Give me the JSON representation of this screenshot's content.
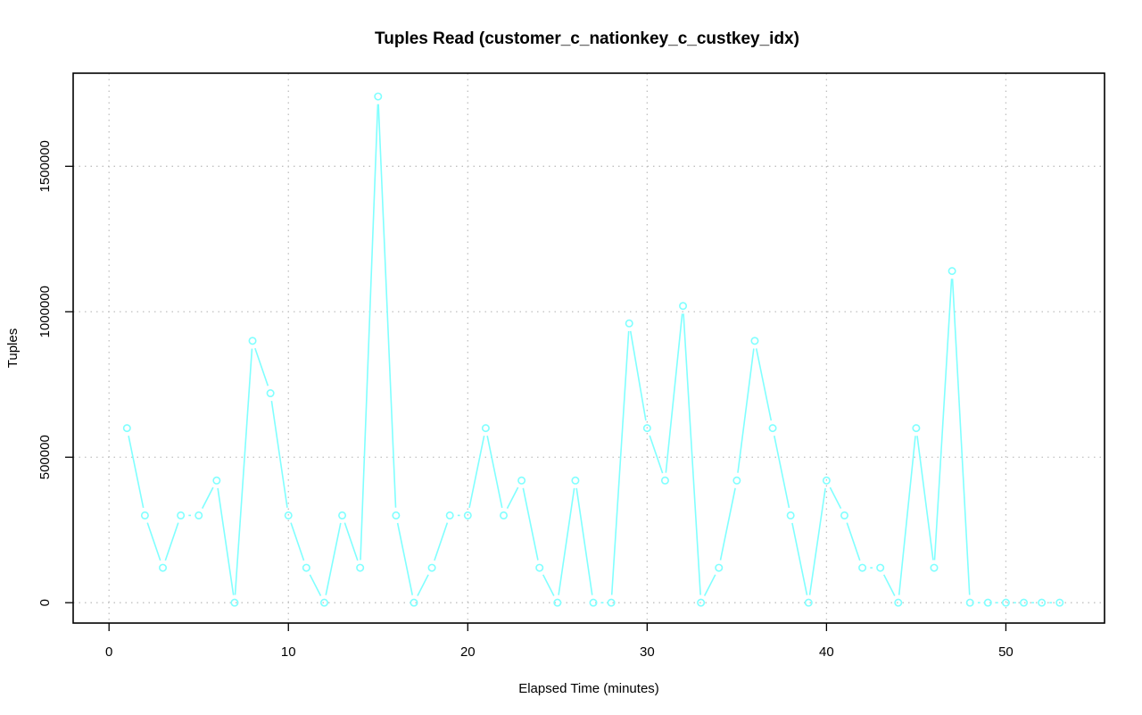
{
  "chart_data": {
    "type": "line",
    "title": "Tuples Read (customer_c_nationkey_c_custkey_idx)",
    "xlabel": "Elapsed Time (minutes)",
    "ylabel": "Tuples",
    "xlim": [
      -2,
      55.5
    ],
    "ylim": [
      -70000,
      1820000
    ],
    "xticks": [
      0,
      10,
      20,
      30,
      40,
      50
    ],
    "yticks": [
      0,
      500000,
      1000000,
      1500000
    ],
    "grid": true,
    "color": "#80ffff",
    "series": [
      {
        "x": [
          1,
          2,
          3,
          4,
          5,
          6,
          7,
          8,
          9,
          10,
          11,
          12,
          13,
          14,
          15,
          16,
          17,
          18,
          19,
          20,
          21,
          22,
          23,
          24,
          25,
          26,
          27,
          28,
          29,
          30,
          31,
          32,
          33,
          34,
          35,
          36,
          37,
          38,
          39,
          40,
          41,
          42,
          43,
          44,
          45,
          46,
          47,
          48,
          49,
          50,
          51,
          52,
          53
        ],
        "values": [
          600000,
          300000,
          120000,
          300000,
          300000,
          420000,
          0,
          900000,
          720000,
          300000,
          120000,
          0,
          300000,
          120000,
          1740000,
          300000,
          0,
          120000,
          300000,
          300000,
          600000,
          300000,
          420000,
          120000,
          0,
          420000,
          0,
          0,
          960000,
          600000,
          420000,
          1020000,
          0,
          120000,
          420000,
          900000,
          600000,
          300000,
          0,
          420000,
          300000,
          120000,
          120000,
          0,
          600000,
          120000,
          1140000,
          0,
          0,
          0,
          0,
          0,
          0
        ]
      }
    ]
  }
}
